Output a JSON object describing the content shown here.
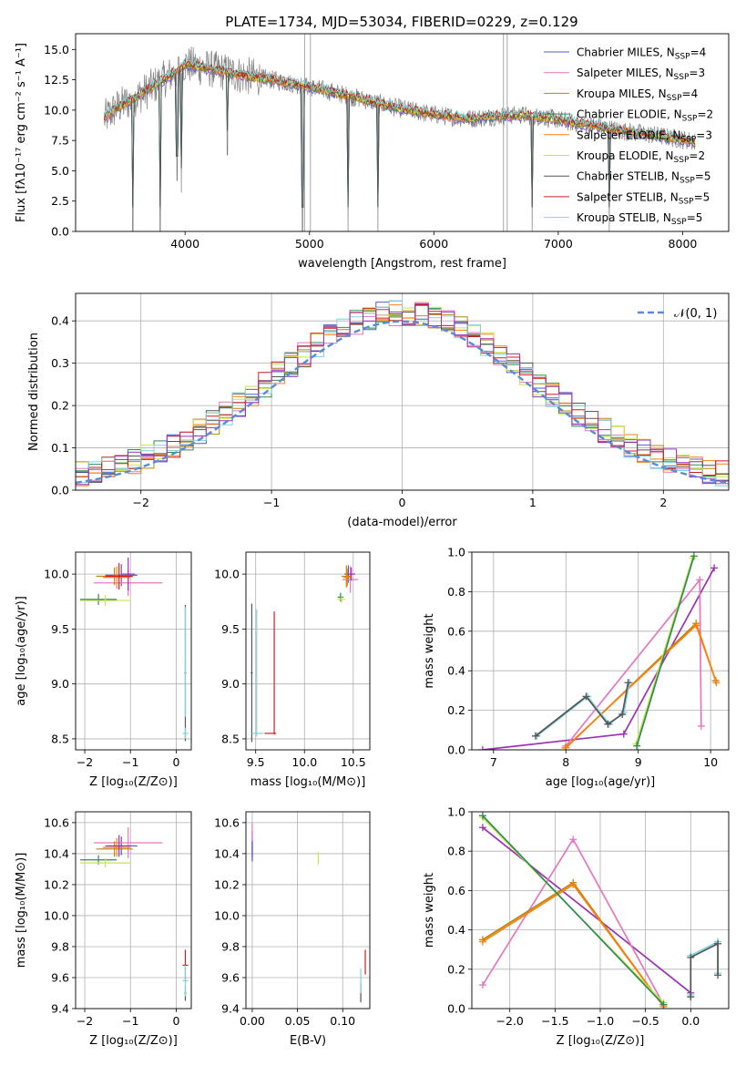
{
  "figure": {
    "title": "PLATE=1734, MJD=53034, FIBERID=0229, z=0.129"
  },
  "chart_data": [
    {
      "id": "spectrum",
      "type": "line",
      "xlabel": "wavelength [Angstrom, rest frame]",
      "ylabel": "Flux [fλ10⁻¹⁷ erg cm⁻² s⁻¹ A⁻¹]",
      "xlim": [
        3120,
        8370
      ],
      "ylim": [
        0,
        16.3
      ],
      "xticks": [
        4000,
        5000,
        6000,
        7000,
        8000
      ],
      "yticks": [
        0.0,
        2.5,
        5.0,
        7.5,
        10.0,
        12.5,
        15.0
      ],
      "legend_position": "top-right",
      "grid": false,
      "series": [
        {
          "name": "Chabrier MILES, N",
          "sub": "SSP",
          "suffix": "=4",
          "color": "#4c5ecf"
        },
        {
          "name": "Salpeter MILES, N",
          "sub": "SSP",
          "suffix": "=3",
          "color": "#e377c2"
        },
        {
          "name": "Kroupa MILES, N",
          "sub": "SSP",
          "suffix": "=4",
          "color": "#b8860b"
        },
        {
          "name": "Chabrier ELODIE, N",
          "sub": "SSP",
          "suffix": "=2",
          "color": "#2e8b57"
        },
        {
          "name": "Salpeter ELODIE, N",
          "sub": "SSP",
          "suffix": "=3",
          "color": "#ff7f0e"
        },
        {
          "name": "Kroupa ELODIE, N",
          "sub": "SSP",
          "suffix": "=2",
          "color": "#c8e64c"
        },
        {
          "name": "Chabrier STELIB, N",
          "sub": "SSP",
          "suffix": "=5",
          "color": "#555555"
        },
        {
          "name": "Salpeter STELIB, N",
          "sub": "SSP",
          "suffix": "=5",
          "color": "#cc1f1f"
        },
        {
          "name": "Kroupa STELIB, N",
          "sub": "SSP",
          "suffix": "=5",
          "color": "#7fd3d8"
        }
      ],
      "data_color": "#808080",
      "model_shape": {
        "x": [
          3350,
          3450,
          3600,
          3750,
          3900,
          4000,
          4150,
          4300,
          4500,
          4700,
          4900,
          5100,
          5300,
          5500,
          5700,
          5900,
          6100,
          6300,
          6500,
          6700,
          6900,
          7100,
          7300,
          7500,
          7800,
          8100
        ],
        "y": [
          9.3,
          10.2,
          11.0,
          12.0,
          13.0,
          13.8,
          13.5,
          13.2,
          12.8,
          12.5,
          12.1,
          11.7,
          11.2,
          10.7,
          10.2,
          9.8,
          9.5,
          9.3,
          9.5,
          9.6,
          9.4,
          9.0,
          8.7,
          8.3,
          7.9,
          7.4
        ]
      },
      "absorption_spikes": [
        {
          "x": 3580,
          "depth": 0.0
        },
        {
          "x": 3800,
          "depth": 0.0
        },
        {
          "x": 3935,
          "depth": 4.2
        },
        {
          "x": 3970,
          "depth": 3.2
        },
        {
          "x": 4340,
          "depth": 6.3
        },
        {
          "x": 4945,
          "depth": 0.0
        },
        {
          "x": 5310,
          "depth": 0.0
        },
        {
          "x": 5550,
          "depth": 0.0
        },
        {
          "x": 6790,
          "depth": 0.0
        },
        {
          "x": 7410,
          "depth": 0.0
        }
      ]
    },
    {
      "id": "residuals",
      "type": "line",
      "xlabel": "(data-model)/error",
      "ylabel": "Normed distribution",
      "xlim": [
        -2.5,
        2.5
      ],
      "ylim": [
        0,
        0.465
      ],
      "xticks": [
        -2,
        -1,
        0,
        1,
        2
      ],
      "yticks": [
        0.0,
        0.1,
        0.2,
        0.3,
        0.4
      ],
      "grid": true,
      "legend_position": "top-right",
      "legend": "𝒩(0, 1)",
      "gaussian": {
        "mu": 0,
        "sigma": 1,
        "color": "#5b8bd6"
      }
    },
    {
      "id": "age_vs_Z",
      "type": "scatter",
      "xlabel": "Z [log₁₀(Z/Z⊙)]",
      "ylabel": "age  [log₁₀(age/yr)]",
      "xlim": [
        -2.2,
        0.33
      ],
      "ylim": [
        8.4,
        10.2
      ],
      "xticks": [
        -2,
        -1,
        0
      ],
      "yticks": [
        8.5,
        9.0,
        9.5,
        10.0
      ],
      "grid": true,
      "points": [
        {
          "x": -1.2,
          "y": 9.99,
          "xerr": 0.35,
          "yerr": 0.1,
          "color": "#4c5ecf"
        },
        {
          "x": -1.05,
          "y": 9.92,
          "xerr": 0.75,
          "yerr": 0.12,
          "color": "#e377c2"
        },
        {
          "x": -1.35,
          "y": 9.98,
          "xerr": 0.4,
          "yerr": 0.08,
          "color": "#b8860b"
        },
        {
          "x": -1.7,
          "y": 9.77,
          "xerr": 0.4,
          "yerr": 0.05,
          "color": "#2e8b57"
        },
        {
          "x": -1.3,
          "y": 9.97,
          "xerr": 0.3,
          "yerr": 0.1,
          "color": "#ff7f0e"
        },
        {
          "x": -1.55,
          "y": 9.76,
          "xerr": 0.55,
          "yerr": 0.05,
          "color": "#c8e64c"
        },
        {
          "x": 0.2,
          "y": 9.1,
          "xerr": 0.02,
          "yerr": 0.62,
          "color": "#555555"
        },
        {
          "x": -1.25,
          "y": 9.98,
          "xerr": 0.3,
          "yerr": 0.12,
          "color": "#cc1f1f"
        },
        {
          "x": 0.2,
          "y": 8.55,
          "xerr": 0.06,
          "yerr": 0.05,
          "color": "#7fd3d8"
        },
        {
          "x": 0.2,
          "y": 9.2,
          "xerr": 0.02,
          "yerr": 0.5,
          "color": "#7fd3d8"
        },
        {
          "x": -1.05,
          "y": 10.0,
          "xerr": 0.15,
          "yerr": 0.15,
          "color": "#9b30b5"
        }
      ]
    },
    {
      "id": "age_vs_mass",
      "type": "scatter",
      "xlabel": "mass [log₁₀(M/M⊙)]",
      "ylabel": "",
      "xlim": [
        9.4,
        10.67
      ],
      "ylim": [
        8.4,
        10.2
      ],
      "xticks": [
        9.5,
        10.0,
        10.5
      ],
      "yticks": [
        8.5,
        9.0,
        9.5,
        10.0
      ],
      "grid": true,
      "points": [
        {
          "x": 10.45,
          "y": 10.0,
          "xerr": 0.04,
          "yerr": 0.08,
          "color": "#4c5ecf"
        },
        {
          "x": 10.47,
          "y": 9.95,
          "xerr": 0.08,
          "yerr": 0.12,
          "color": "#e377c2"
        },
        {
          "x": 10.43,
          "y": 9.98,
          "xerr": 0.05,
          "yerr": 0.1,
          "color": "#b8860b"
        },
        {
          "x": 10.37,
          "y": 9.79,
          "xerr": 0.03,
          "yerr": 0.04,
          "color": "#2e8b57"
        },
        {
          "x": 10.44,
          "y": 9.97,
          "xerr": 0.04,
          "yerr": 0.08,
          "color": "#ff7f0e"
        },
        {
          "x": 10.38,
          "y": 9.77,
          "xerr": 0.04,
          "yerr": 0.03,
          "color": "#c8e64c"
        },
        {
          "x": 9.46,
          "y": 9.1,
          "xerr": 0.01,
          "yerr": 0.63,
          "color": "#555555"
        },
        {
          "x": 9.65,
          "y": 8.55,
          "xerr": 0.06,
          "yerr": 0.0,
          "color": "#cc1f1f"
        },
        {
          "x": 9.69,
          "y": 9.1,
          "xerr": 0.0,
          "yerr": 0.56,
          "color": "#cc1f1f"
        },
        {
          "x": 9.52,
          "y": 8.55,
          "xerr": 0.06,
          "yerr": 0.0,
          "color": "#7fd3d8"
        },
        {
          "x": 9.51,
          "y": 9.1,
          "xerr": 0.0,
          "yerr": 0.58,
          "color": "#7fd3d8"
        },
        {
          "x": 10.48,
          "y": 10.0,
          "xerr": 0.04,
          "yerr": 0.06,
          "color": "#9b30b5"
        }
      ]
    },
    {
      "id": "weight_vs_age",
      "type": "line",
      "xlabel": "age  [log₁₀(age/yr)]",
      "ylabel": "mass weight",
      "xlim": [
        6.7,
        10.25
      ],
      "ylim": [
        0,
        1.0
      ],
      "xticks": [
        7,
        8,
        9,
        10
      ],
      "yticks": [
        0.0,
        0.2,
        0.4,
        0.6,
        0.8,
        1.0
      ],
      "grid": true,
      "series": [
        {
          "color": "#9b30b5",
          "x": [
            6.85,
            8.8,
            10.05
          ],
          "y": [
            0.0,
            0.08,
            0.92
          ]
        },
        {
          "color": "#e377c2",
          "x": [
            8.0,
            9.85,
            9.87
          ],
          "y": [
            0.02,
            0.86,
            0.12
          ]
        },
        {
          "color": "#b8860b",
          "x": [
            8.0,
            9.8,
            10.07
          ],
          "y": [
            0.01,
            0.64,
            0.35
          ]
        },
        {
          "color": "#ff7f0e",
          "x": [
            7.99,
            9.8,
            10.08
          ],
          "y": [
            0.01,
            0.63,
            0.34
          ]
        },
        {
          "color": "#c8e64c",
          "x": [
            8.97,
            9.75
          ],
          "y": [
            0.03,
            0.97
          ]
        },
        {
          "color": "#2e8b57",
          "x": [
            8.98,
            9.77
          ],
          "y": [
            0.02,
            0.98
          ]
        },
        {
          "color": "#7fd3d8",
          "x": [
            7.6,
            8.3,
            8.6,
            8.8,
            8.88
          ],
          "y": [
            0.07,
            0.27,
            0.13,
            0.19,
            0.34
          ]
        },
        {
          "color": "#555555",
          "x": [
            7.58,
            8.28,
            8.58,
            8.78,
            8.86
          ],
          "y": [
            0.07,
            0.27,
            0.13,
            0.18,
            0.34
          ]
        }
      ]
    },
    {
      "id": "mass_vs_Z",
      "type": "scatter",
      "xlabel": "Z [log₁₀(Z/Z⊙)]",
      "ylabel": "mass [log₁₀(M/M⊙)]",
      "xlim": [
        -2.2,
        0.33
      ],
      "ylim": [
        9.4,
        10.67
      ],
      "xticks": [
        -2,
        -1,
        0
      ],
      "yticks": [
        9.4,
        9.6,
        9.8,
        10.0,
        10.2,
        10.4,
        10.6
      ],
      "grid": true,
      "points": [
        {
          "x": -1.2,
          "y": 10.45,
          "xerr": 0.35,
          "yerr": 0.06,
          "color": "#4c5ecf"
        },
        {
          "x": -1.05,
          "y": 10.47,
          "xerr": 0.75,
          "yerr": 0.1,
          "color": "#e377c2"
        },
        {
          "x": -1.35,
          "y": 10.43,
          "xerr": 0.4,
          "yerr": 0.05,
          "color": "#b8860b"
        },
        {
          "x": -1.7,
          "y": 10.36,
          "xerr": 0.4,
          "yerr": 0.03,
          "color": "#2e8b57"
        },
        {
          "x": -1.3,
          "y": 10.44,
          "xerr": 0.3,
          "yerr": 0.06,
          "color": "#ff7f0e"
        },
        {
          "x": -1.55,
          "y": 10.34,
          "xerr": 0.55,
          "yerr": 0.03,
          "color": "#c8e64c"
        },
        {
          "x": 0.2,
          "y": 9.5,
          "xerr": 0.02,
          "yerr": 0.05,
          "color": "#555555"
        },
        {
          "x": 0.2,
          "y": 9.68,
          "xerr": 0.06,
          "yerr": 0.1,
          "color": "#cc1f1f"
        },
        {
          "x": 0.2,
          "y": 9.58,
          "xerr": 0.06,
          "yerr": 0.1,
          "color": "#7fd3d8"
        },
        {
          "x": -1.25,
          "y": 10.45,
          "xerr": 0.25,
          "yerr": 0.07,
          "color": "#9b30b5"
        }
      ]
    },
    {
      "id": "mass_vs_ebv",
      "type": "scatter",
      "xlabel": "E(B-V)",
      "ylabel": "",
      "xlim": [
        -0.007,
        0.13
      ],
      "ylim": [
        9.4,
        10.67
      ],
      "xticks": [
        0.0,
        0.05,
        0.1
      ],
      "yticks": [
        9.4,
        9.6,
        9.8,
        10.0,
        10.2,
        10.4,
        10.6
      ],
      "grid": true,
      "points": [
        {
          "x": 0.0,
          "y": 10.45,
          "xerr": 0.0,
          "yerr": 0.1,
          "color": "#9b30b5"
        },
        {
          "x": 0.0,
          "y": 10.5,
          "xerr": 0.0,
          "yerr": 0.1,
          "color": "#e377c2"
        },
        {
          "x": 0.0,
          "y": 10.43,
          "xerr": 0.0,
          "yerr": 0.05,
          "color": "#b8860b"
        },
        {
          "x": 0.0,
          "y": 10.42,
          "xerr": 0.0,
          "yerr": 0.06,
          "color": "#4c5ecf"
        },
        {
          "x": 0.073,
          "y": 10.37,
          "xerr": 0.0,
          "yerr": 0.04,
          "color": "#c8e64c"
        },
        {
          "x": 0.12,
          "y": 9.5,
          "xerr": 0.0,
          "yerr": 0.06,
          "color": "#555555"
        },
        {
          "x": 0.125,
          "y": 9.7,
          "xerr": 0.0,
          "yerr": 0.08,
          "color": "#cc1f1f"
        },
        {
          "x": 0.12,
          "y": 9.58,
          "xerr": 0.0,
          "yerr": 0.08,
          "color": "#7fd3d8"
        }
      ]
    },
    {
      "id": "weight_vs_Z",
      "type": "line",
      "xlabel": "Z [log₁₀(Z/Z⊙)]",
      "ylabel": "mass weight",
      "xlim": [
        -2.42,
        0.42
      ],
      "ylim": [
        0,
        1.0
      ],
      "xticks": [
        -2.0,
        -1.5,
        -1.0,
        -0.5,
        0.0
      ],
      "yticks": [
        0.0,
        0.2,
        0.4,
        0.6,
        0.8,
        1.0
      ],
      "grid": true,
      "series": [
        {
          "color": "#9b30b5",
          "x": [
            -2.3,
            0.0
          ],
          "y": [
            0.92,
            0.08
          ]
        },
        {
          "color": "#e377c2",
          "x": [
            -2.3,
            -1.3,
            -0.3
          ],
          "y": [
            0.12,
            0.86,
            0.02
          ]
        },
        {
          "color": "#b8860b",
          "x": [
            -2.3,
            -1.3,
            -0.3
          ],
          "y": [
            0.35,
            0.64,
            0.01
          ]
        },
        {
          "color": "#ff7f0e",
          "x": [
            -2.3,
            -1.3,
            -0.3
          ],
          "y": [
            0.34,
            0.63,
            0.01
          ]
        },
        {
          "color": "#c8e64c",
          "x": [
            -2.3,
            -0.3
          ],
          "y": [
            0.97,
            0.03
          ]
        },
        {
          "color": "#2e8b57",
          "x": [
            -2.3,
            -0.3
          ],
          "y": [
            0.98,
            0.02
          ]
        },
        {
          "color": "#7fd3d8",
          "x": [
            0.0,
            0.0,
            0.3,
            0.3
          ],
          "y": [
            0.07,
            0.27,
            0.34,
            0.18
          ]
        },
        {
          "color": "#555555",
          "x": [
            0.0,
            0.0,
            0.3,
            0.3
          ],
          "y": [
            0.06,
            0.26,
            0.33,
            0.17
          ]
        }
      ]
    }
  ]
}
